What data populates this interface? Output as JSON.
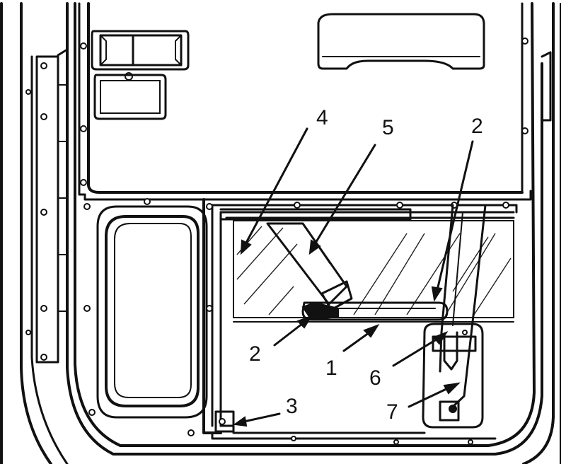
{
  "diagram": {
    "callouts": [
      {
        "id": "1",
        "label": "1"
      },
      {
        "id": "2a",
        "label": "2"
      },
      {
        "id": "2b",
        "label": "2"
      },
      {
        "id": "3",
        "label": "3"
      },
      {
        "id": "4",
        "label": "4"
      },
      {
        "id": "5",
        "label": "5"
      },
      {
        "id": "6",
        "label": "6"
      },
      {
        "id": "7",
        "label": "7"
      }
    ]
  },
  "colors": {
    "line": "#111111",
    "background": "#ffffff"
  }
}
